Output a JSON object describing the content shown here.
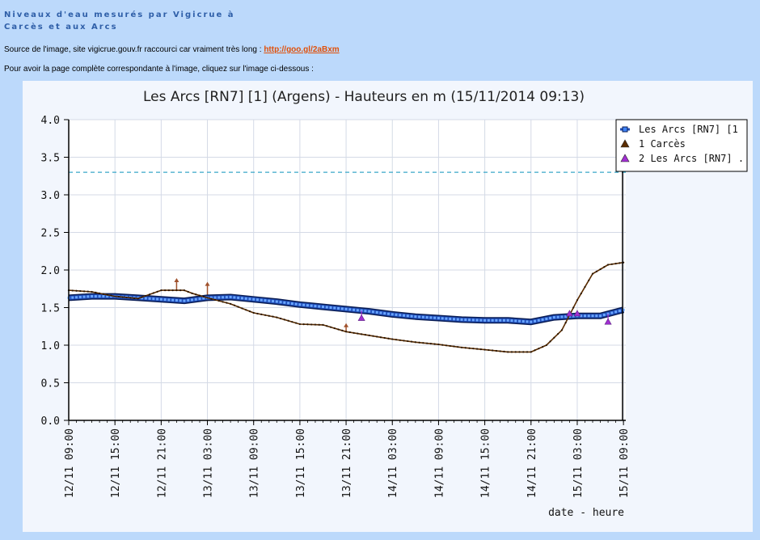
{
  "page": {
    "heading_line1": "Niveaux d'eau mesurés par Vigicrue à",
    "heading_line2": "Carcès et aux Arcs",
    "source_text": "Source de l'image, site vigicrue.gouv.fr raccourci car vraiment très long : ",
    "source_link": "http://goo.gl/2aBxm",
    "instruction": "Pour avoir la page complète correspondante à l'image, cliquez sur l'image ci-dessous :"
  },
  "chart_data": {
    "type": "line",
    "title": "Les Arcs [RN7] [1] (Argens) - Hauteurs en m (15/11/2014 09:13)",
    "xlabel": "date - heure",
    "ylabel": "",
    "ylim": [
      0,
      4
    ],
    "yticks": [
      "0.0",
      "0.5",
      "1.0",
      "1.5",
      "2.0",
      "2.5",
      "3.0",
      "3.5",
      "4.0"
    ],
    "xlim_hours": [
      0,
      72.3
    ],
    "xticks": [
      "12/11 09:00",
      "12/11 15:00",
      "12/11 21:00",
      "13/11 03:00",
      "13/11 09:00",
      "13/11 15:00",
      "13/11 21:00",
      "14/11 03:00",
      "14/11 09:00",
      "14/11 15:00",
      "14/11 21:00",
      "15/11 03:00",
      "15/11 09:00"
    ],
    "reference_line": {
      "value": 3.3,
      "color": "#3aa7c9"
    },
    "grid": true,
    "legend_position": "top-right",
    "series": [
      {
        "name": "Les Arcs [RN7] [1",
        "color": "#1f4db8",
        "marker": "square",
        "x": [
          "12/11 09:00",
          "12/11 12:00",
          "12/11 15:00",
          "12/11 18:00",
          "12/11 21:00",
          "13/11 00:00",
          "13/11 03:00",
          "13/11 06:00",
          "13/11 09:00",
          "13/11 12:00",
          "13/11 15:00",
          "13/11 18:00",
          "13/11 21:00",
          "14/11 00:00",
          "14/11 03:00",
          "14/11 06:00",
          "14/11 09:00",
          "14/11 12:00",
          "14/11 15:00",
          "14/11 18:00",
          "14/11 21:00",
          "15/11 00:00",
          "15/11 03:00",
          "15/11 06:00",
          "15/11 09:00"
        ],
        "y": [
          1.63,
          1.65,
          1.65,
          1.63,
          1.61,
          1.59,
          1.63,
          1.64,
          1.61,
          1.58,
          1.54,
          1.51,
          1.48,
          1.45,
          1.41,
          1.38,
          1.36,
          1.34,
          1.33,
          1.33,
          1.31,
          1.37,
          1.39,
          1.39,
          1.47
        ]
      },
      {
        "name": "1 Carcès",
        "color": "#5a2c00",
        "marker": "triangle",
        "x": [
          "12/11 09:00",
          "12/11 12:00",
          "12/11 15:00",
          "12/11 18:00",
          "12/11 21:00",
          "13/11 00:00",
          "13/11 01:00",
          "13/11 03:00",
          "13/11 06:00",
          "13/11 09:00",
          "13/11 12:00",
          "13/11 15:00",
          "13/11 18:00",
          "13/11 21:00",
          "14/11 00:00",
          "14/11 03:00",
          "14/11 06:00",
          "14/11 09:00",
          "14/11 12:00",
          "14/11 15:00",
          "14/11 18:00",
          "14/11 21:00",
          "14/11 23:00",
          "15/11 01:00",
          "15/11 03:00",
          "15/11 05:00",
          "15/11 07:00",
          "15/11 09:00"
        ],
        "y": [
          1.73,
          1.71,
          1.65,
          1.62,
          1.73,
          1.73,
          1.69,
          1.63,
          1.55,
          1.43,
          1.37,
          1.28,
          1.27,
          1.18,
          1.13,
          1.08,
          1.04,
          1.01,
          0.97,
          0.94,
          0.91,
          0.91,
          1.0,
          1.2,
          1.6,
          1.95,
          2.07,
          2.1
        ]
      },
      {
        "name": "2 Les Arcs [RN7] .",
        "color": "#a22fd2",
        "marker": "triangle",
        "x": [
          "13/11 23:00",
          "15/11 02:00",
          "15/11 03:00",
          "15/11 07:00"
        ],
        "y": [
          1.36,
          1.42,
          1.42,
          1.31
        ]
      }
    ],
    "spikes": [
      {
        "x": "12/11 23:00",
        "y": 1.85,
        "color": "#a0522d"
      },
      {
        "x": "13/11 03:00",
        "y": 1.8,
        "color": "#a0522d"
      },
      {
        "x": "13/11 21:00",
        "y": 1.25,
        "color": "#a0522d"
      }
    ]
  }
}
